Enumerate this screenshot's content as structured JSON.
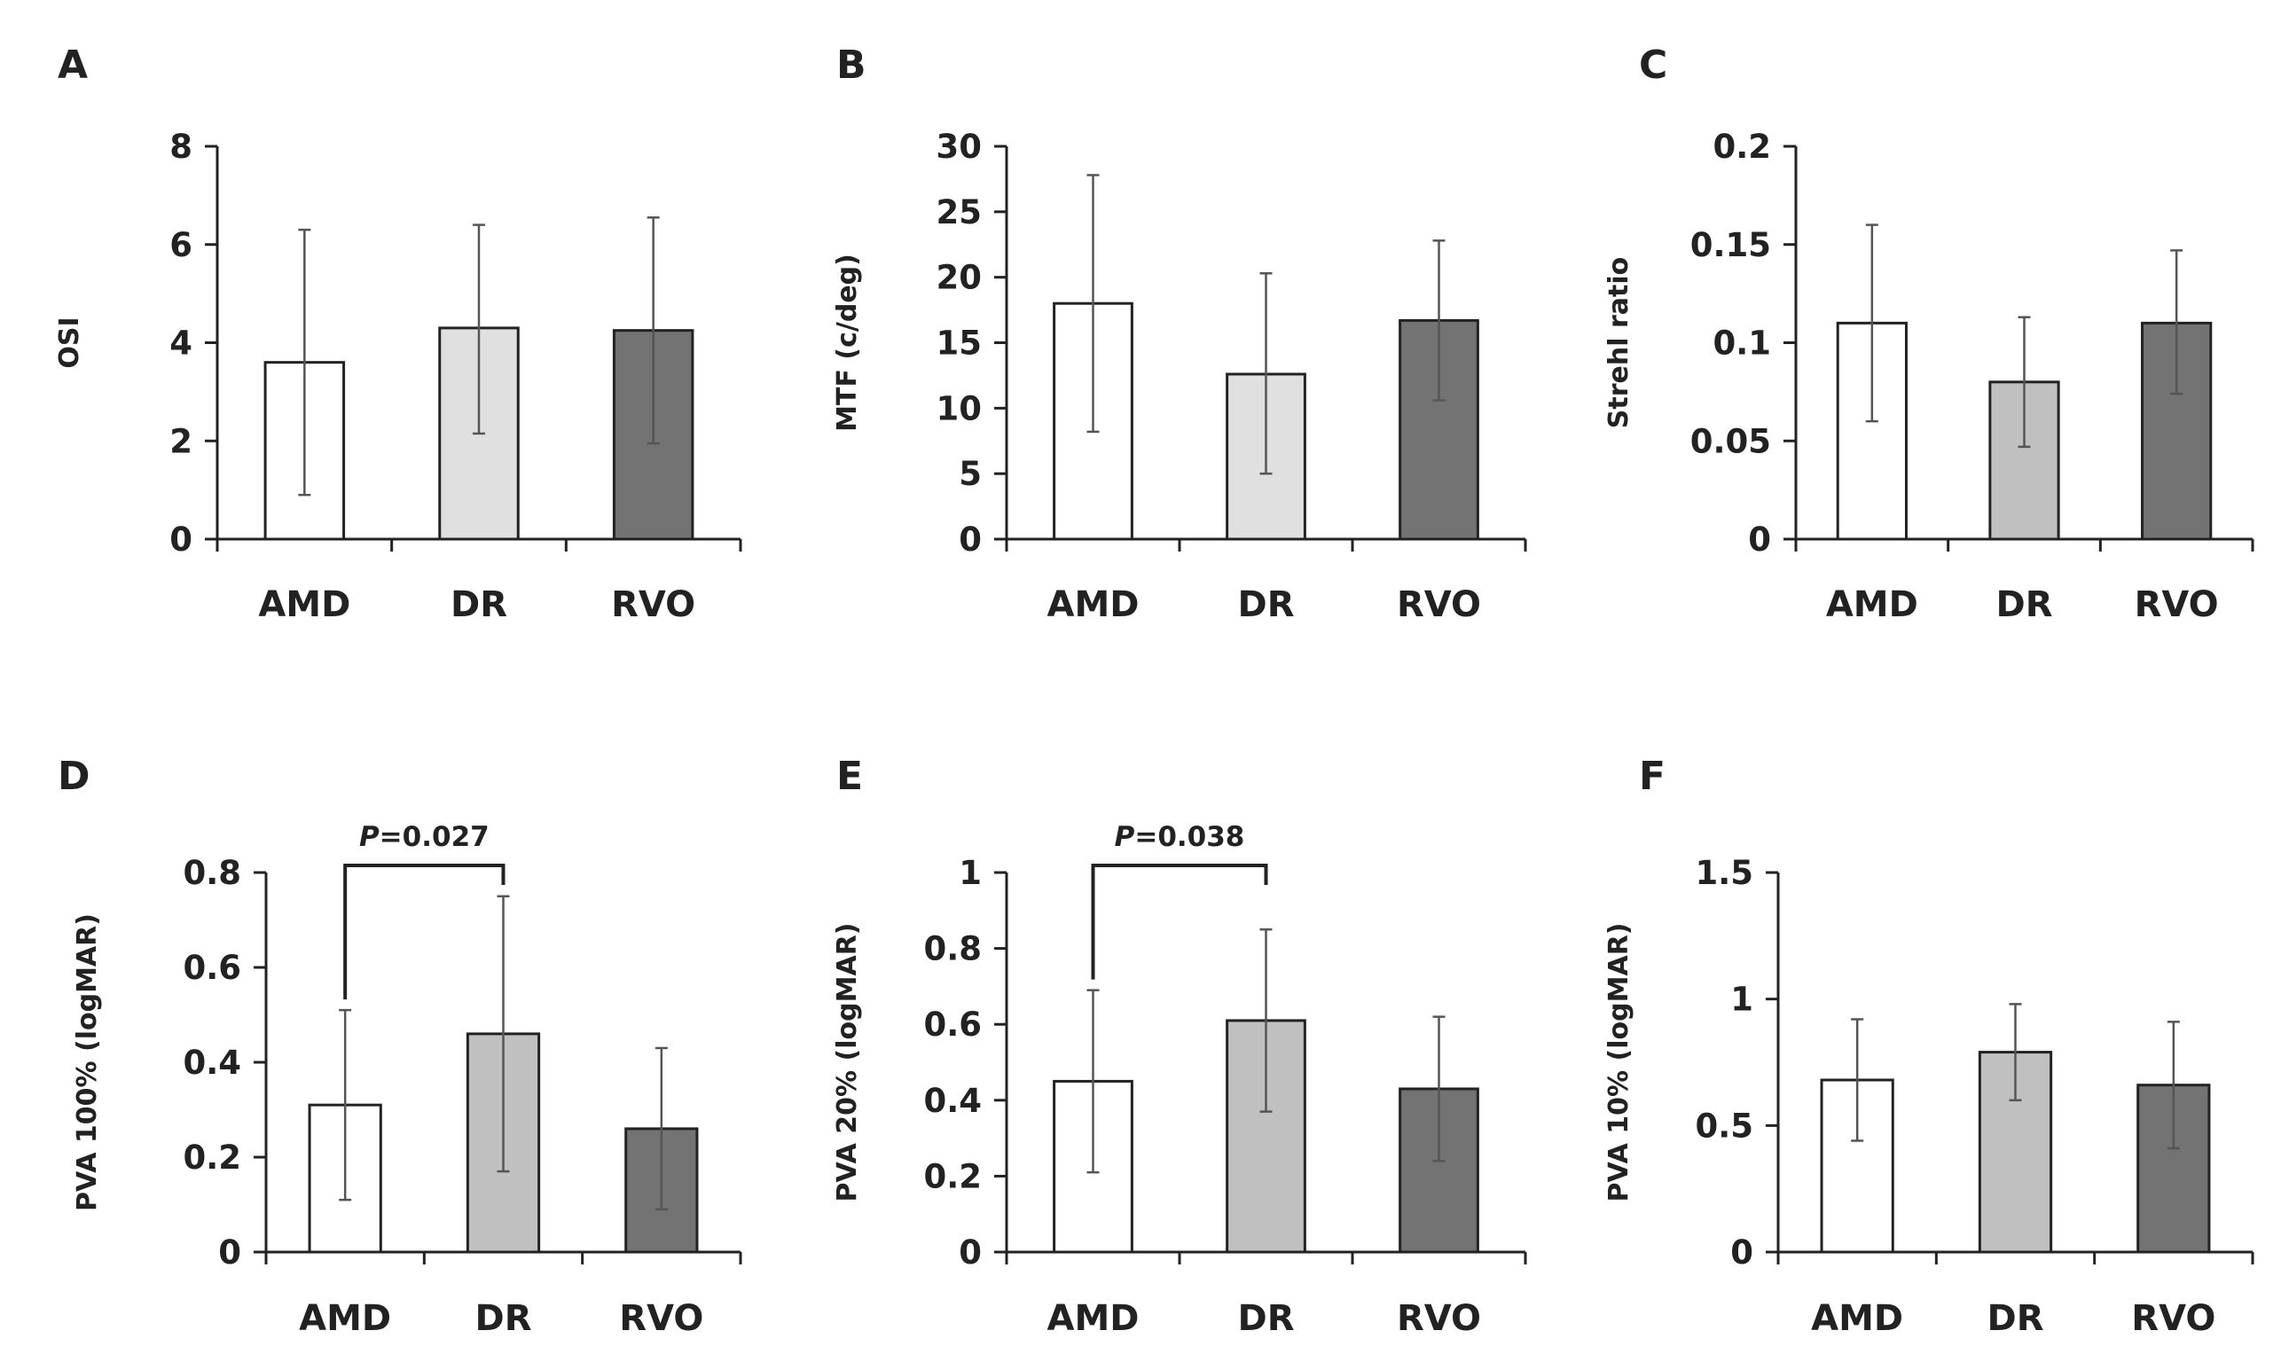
{
  "chart_data": [
    {
      "panel": "A",
      "type": "bar",
      "categories": [
        "AMD",
        "DR",
        "RVO"
      ],
      "values": [
        3.6,
        4.3,
        4.25
      ],
      "error_low": [
        0.9,
        2.15,
        1.95
      ],
      "error_high": [
        6.3,
        6.4,
        6.55
      ],
      "ylabel": "OSI",
      "ylim": [
        0,
        8
      ],
      "yticks": [
        "0",
        "2",
        "4",
        "6",
        "8"
      ],
      "colors": [
        "#ffffff",
        "#e0e0e0",
        "#737373"
      ]
    },
    {
      "panel": "B",
      "type": "bar",
      "categories": [
        "AMD",
        "DR",
        "RVO"
      ],
      "values": [
        18.0,
        12.6,
        16.7
      ],
      "error_low": [
        8.2,
        5.0,
        10.6
      ],
      "error_high": [
        27.8,
        20.3,
        22.8
      ],
      "ylabel": "MTF (c/deg)",
      "ylim": [
        0,
        30
      ],
      "yticks": [
        "0",
        "5",
        "10",
        "15",
        "20",
        "25",
        "30"
      ],
      "colors": [
        "#ffffff",
        "#e0e0e0",
        "#737373"
      ]
    },
    {
      "panel": "C",
      "type": "bar",
      "categories": [
        "AMD",
        "DR",
        "RVO"
      ],
      "values": [
        0.11,
        0.08,
        0.11
      ],
      "error_low": [
        0.06,
        0.047,
        0.074
      ],
      "error_high": [
        0.16,
        0.113,
        0.147
      ],
      "ylabel": "Strehl ratio",
      "ylim": [
        0,
        0.2
      ],
      "yticks": [
        "0",
        "0.05",
        "0.1",
        "0.15",
        "0.2"
      ],
      "colors": [
        "#ffffff",
        "#c0c0c0",
        "#737373"
      ]
    },
    {
      "panel": "D",
      "type": "bar",
      "categories": [
        "AMD",
        "DR",
        "RVO"
      ],
      "values": [
        0.31,
        0.46,
        0.26
      ],
      "error_low": [
        0.11,
        0.17,
        0.09
      ],
      "error_high": [
        0.51,
        0.75,
        0.43
      ],
      "ylabel": "PVA 100% (logMAR)",
      "ylim": [
        0,
        0.8
      ],
      "yticks": [
        "0",
        "0.2",
        "0.4",
        "0.6",
        "0.8"
      ],
      "colors": [
        "#ffffff",
        "#c0c0c0",
        "#737373"
      ],
      "annotation": {
        "label_italic": "P",
        "label_rest": "=0.027",
        "from": 0,
        "to": 1
      }
    },
    {
      "panel": "E",
      "type": "bar",
      "categories": [
        "AMD",
        "DR",
        "RVO"
      ],
      "values": [
        0.45,
        0.61,
        0.43
      ],
      "error_low": [
        0.21,
        0.37,
        0.24
      ],
      "error_high": [
        0.69,
        0.85,
        0.62
      ],
      "ylabel": "PVA 20% (logMAR)",
      "ylim": [
        0,
        1
      ],
      "yticks": [
        "0",
        "0.2",
        "0.4",
        "0.6",
        "0.8",
        "1"
      ],
      "colors": [
        "#ffffff",
        "#c0c0c0",
        "#737373"
      ],
      "annotation": {
        "label_italic": "P",
        "label_rest": "=0.038",
        "from": 0,
        "to": 1
      }
    },
    {
      "panel": "F",
      "type": "bar",
      "categories": [
        "AMD",
        "DR",
        "RVO"
      ],
      "values": [
        0.68,
        0.79,
        0.66
      ],
      "error_low": [
        0.44,
        0.6,
        0.41
      ],
      "error_high": [
        0.92,
        0.98,
        0.91
      ],
      "ylabel": "PVA 10% (logMAR)",
      "ylim": [
        0,
        1.5
      ],
      "yticks": [
        "0",
        "0.5",
        "1",
        "1.5"
      ],
      "colors": [
        "#ffffff",
        "#c0c0c0",
        "#737373"
      ]
    }
  ]
}
